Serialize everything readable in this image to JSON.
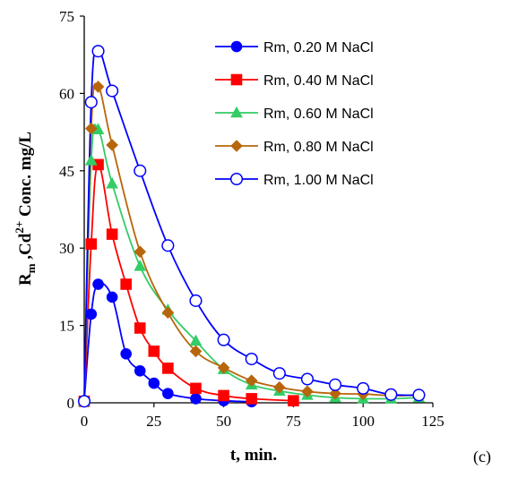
{
  "chart_data": {
    "type": "line",
    "xlabel": "t, min.",
    "ylabel_parts": {
      "r": "R",
      "r_sub": "m",
      "mid": " ,Cd",
      "sup": "2+",
      "end": " Conc. mg/L"
    },
    "xlim": [
      0,
      125
    ],
    "ylim": [
      0,
      75
    ],
    "xticks": [
      0,
      25,
      50,
      75,
      100,
      125
    ],
    "yticks": [
      0,
      15,
      30,
      45,
      60,
      75
    ],
    "grid": false,
    "legend_position": "top-right",
    "panel_label": "(c)",
    "series": [
      {
        "name": "Rm, 0.20 M NaCl",
        "color": "#0000ff",
        "marker": "circle-filled",
        "x": [
          0,
          2.5,
          5,
          10,
          15,
          20,
          25,
          30,
          40,
          50,
          60
        ],
        "y": [
          0.3,
          17.2,
          23,
          20.5,
          9.5,
          6.2,
          3.8,
          1.8,
          0.8,
          0.4,
          0.2
        ]
      },
      {
        "name": "Rm, 0.40 M NaCl",
        "color": "#ff0000",
        "marker": "square-filled",
        "x": [
          0,
          2.5,
          5,
          10,
          15,
          20,
          25,
          30,
          40,
          50,
          60,
          75
        ],
        "y": [
          0.3,
          30.8,
          46.2,
          32.7,
          23,
          14.5,
          10,
          6.7,
          2.8,
          1.4,
          0.8,
          0.4
        ]
      },
      {
        "name": "Rm, 0.60 M NaCl",
        "color": "#33cc66",
        "marker": "triangle-filled",
        "x": [
          0,
          2.5,
          5,
          10,
          20,
          30,
          40,
          50,
          60,
          70,
          80,
          90,
          100,
          110,
          120
        ],
        "y": [
          0.3,
          47,
          53,
          42.5,
          26.5,
          18,
          12,
          6.5,
          3.5,
          2.3,
          1.5,
          1,
          0.8,
          0.8,
          1
        ]
      },
      {
        "name": "Rm, 0.80 M NaCl",
        "color": "#b8660b",
        "marker": "diamond-filled",
        "x": [
          0,
          2.5,
          5,
          10,
          20,
          30,
          40,
          50,
          60,
          70,
          80,
          90,
          100,
          110,
          120
        ],
        "y": [
          0.3,
          53.2,
          61.3,
          50,
          29.3,
          17.5,
          10,
          6.8,
          4.3,
          3,
          2.2,
          1.8,
          1.7,
          1.4,
          1.5
        ]
      },
      {
        "name": "Rm, 1.00 M NaCl",
        "color": "#0000ff",
        "marker": "circle-open",
        "x": [
          0,
          2.5,
          5,
          10,
          20,
          30,
          40,
          50,
          60,
          70,
          80,
          90,
          100,
          110,
          120
        ],
        "y": [
          0.3,
          58.3,
          68.2,
          60.5,
          45,
          30.5,
          19.8,
          12.2,
          8.5,
          5.7,
          4.6,
          3.5,
          2.8,
          1.6,
          1.5
        ]
      }
    ]
  }
}
